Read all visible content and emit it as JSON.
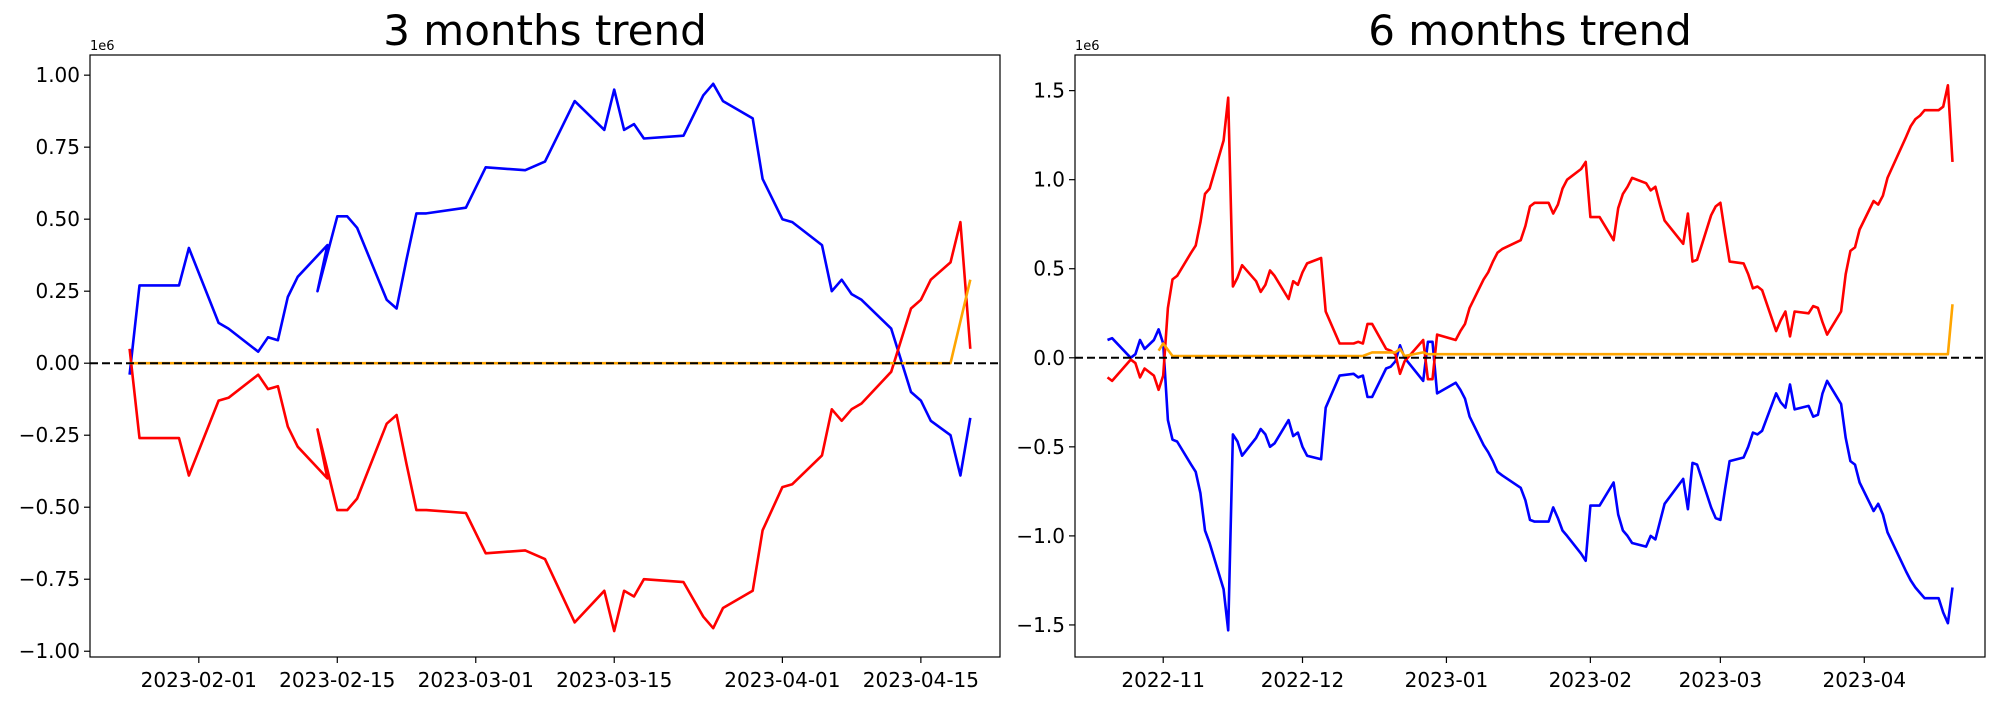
{
  "chart_data": [
    {
      "type": "line",
      "title": "3 months trend",
      "ylim": [
        -1.02,
        1.07
      ],
      "y_offset_label": "1e6",
      "y_ticks": [
        -1.0,
        -0.75,
        -0.5,
        -0.25,
        0.0,
        0.25,
        0.5,
        0.75,
        1.0
      ],
      "y_tick_labels": [
        "−1.00",
        "−0.75",
        "−0.50",
        "−0.25",
        "0.00",
        "0.25",
        "0.50",
        "0.75",
        "1.00"
      ],
      "xlim": [
        "2023-01-21",
        "2023-04-23"
      ],
      "x_ticks": [
        "2023-02-01",
        "2023-02-15",
        "2023-03-01",
        "2023-03-15",
        "2023-04-01",
        "2023-04-15"
      ],
      "x_tick_labels": [
        "2023-02-01",
        "2023-02-15",
        "2023-03-01",
        "2023-03-15",
        "2023-04-01",
        "2023-04-15"
      ],
      "reference_line": 0,
      "series": [
        {
          "color": "#0000ff",
          "x": [
            "2023-01-25",
            "2023-01-26",
            "2023-01-30",
            "2023-01-31",
            "2023-02-03",
            "2023-02-04",
            "2023-02-07",
            "2023-02-08",
            "2023-02-09",
            "2023-02-10",
            "2023-02-11",
            "2023-02-14",
            "2023-02-13",
            "2023-02-15",
            "2023-02-16",
            "2023-02-17",
            "2023-02-20",
            "2023-02-21",
            "2023-02-22",
            "2023-02-23",
            "2023-02-24",
            "2023-02-28",
            "2023-03-02",
            "2023-03-06",
            "2023-03-08",
            "2023-03-11",
            "2023-03-14",
            "2023-03-15",
            "2023-03-16",
            "2023-03-17",
            "2023-03-18",
            "2023-03-22",
            "2023-03-24",
            "2023-03-25",
            "2023-03-26",
            "2023-03-29",
            "2023-03-30",
            "2023-04-01",
            "2023-04-02",
            "2023-04-05",
            "2023-04-06",
            "2023-04-07",
            "2023-04-08",
            "2023-04-09",
            "2023-04-12",
            "2023-04-14",
            "2023-04-15",
            "2023-04-16",
            "2023-04-18",
            "2023-04-19",
            "2023-04-20"
          ],
          "y": [
            -0.04,
            0.27,
            0.27,
            0.4,
            0.14,
            0.12,
            0.04,
            0.09,
            0.08,
            0.23,
            0.3,
            0.41,
            0.25,
            0.51,
            0.51,
            0.47,
            0.22,
            0.19,
            0.36,
            0.52,
            0.52,
            0.54,
            0.68,
            0.67,
            0.7,
            0.91,
            0.81,
            0.95,
            0.81,
            0.83,
            0.78,
            0.79,
            0.93,
            0.97,
            0.91,
            0.85,
            0.64,
            0.5,
            0.49,
            0.41,
            0.25,
            0.29,
            0.24,
            0.22,
            0.12,
            -0.1,
            -0.13,
            -0.2,
            -0.25,
            -0.39,
            -0.19
          ]
        },
        {
          "color": "#ff0000",
          "x": [
            "2023-01-25",
            "2023-01-26",
            "2023-01-30",
            "2023-01-31",
            "2023-02-03",
            "2023-02-04",
            "2023-02-07",
            "2023-02-08",
            "2023-02-09",
            "2023-02-10",
            "2023-02-11",
            "2023-02-14",
            "2023-02-13",
            "2023-02-15",
            "2023-02-16",
            "2023-02-17",
            "2023-02-20",
            "2023-02-21",
            "2023-02-22",
            "2023-02-23",
            "2023-02-24",
            "2023-02-28",
            "2023-03-02",
            "2023-03-06",
            "2023-03-08",
            "2023-03-11",
            "2023-03-14",
            "2023-03-15",
            "2023-03-16",
            "2023-03-17",
            "2023-03-18",
            "2023-03-22",
            "2023-03-24",
            "2023-03-25",
            "2023-03-26",
            "2023-03-29",
            "2023-03-30",
            "2023-04-01",
            "2023-04-02",
            "2023-04-05",
            "2023-04-06",
            "2023-04-07",
            "2023-04-08",
            "2023-04-09",
            "2023-04-12",
            "2023-04-14",
            "2023-04-15",
            "2023-04-16",
            "2023-04-18",
            "2023-04-19",
            "2023-04-20"
          ],
          "y": [
            0.05,
            -0.26,
            -0.26,
            -0.39,
            -0.13,
            -0.12,
            -0.04,
            -0.09,
            -0.08,
            -0.22,
            -0.29,
            -0.4,
            -0.23,
            -0.51,
            -0.51,
            -0.47,
            -0.21,
            -0.18,
            -0.35,
            -0.51,
            -0.51,
            -0.52,
            -0.66,
            -0.65,
            -0.68,
            -0.9,
            -0.79,
            -0.93,
            -0.79,
            -0.81,
            -0.75,
            -0.76,
            -0.88,
            -0.92,
            -0.85,
            -0.79,
            -0.58,
            -0.43,
            -0.42,
            -0.32,
            -0.16,
            -0.2,
            -0.16,
            -0.14,
            -0.03,
            0.19,
            0.22,
            0.29,
            0.35,
            0.49,
            0.05
          ]
        },
        {
          "color": "#ffa500",
          "x": [
            "2023-01-25",
            "2023-04-18",
            "2023-04-20"
          ],
          "y": [
            0.0,
            0.0,
            0.29
          ]
        }
      ]
    },
    {
      "type": "line",
      "title": "6 months trend",
      "ylim": [
        -1.68,
        1.7
      ],
      "y_offset_label": "1e6",
      "y_ticks": [
        -1.5,
        -1.0,
        -0.5,
        0.0,
        0.5,
        1.0,
        1.5
      ],
      "y_tick_labels": [
        "−1.5",
        "−1.0",
        "−0.5",
        "0.0",
        "0.5",
        "1.0",
        "1.5"
      ],
      "xlim": [
        "2022-10-13",
        "2023-04-27"
      ],
      "x_ticks": [
        "2022-11-01",
        "2022-12-01",
        "2023-01-01",
        "2023-02-01",
        "2023-03-01",
        "2023-04-01"
      ],
      "x_tick_labels": [
        "2022-11",
        "2022-12",
        "2023-01",
        "2023-02",
        "2023-03",
        "2023-04"
      ],
      "reference_line": 0,
      "series": [
        {
          "color": "#0000ff",
          "x": [
            "2022-10-20",
            "2022-10-21",
            "2022-10-25",
            "2022-10-26",
            "2022-10-27",
            "2022-10-28",
            "2022-10-30",
            "2022-10-31",
            "2022-11-01",
            "2022-11-02",
            "2022-11-03",
            "2022-11-04",
            "2022-11-07",
            "2022-11-08",
            "2022-11-09",
            "2022-11-10",
            "2022-11-11",
            "2022-11-14",
            "2022-11-15",
            "2022-11-16",
            "2022-11-17",
            "2022-11-18",
            "2022-11-21",
            "2022-11-22",
            "2022-11-23",
            "2022-11-24",
            "2022-11-25",
            "2022-11-28",
            "2022-11-29",
            "2022-11-30",
            "2022-12-01",
            "2022-12-02",
            "2022-12-05",
            "2022-12-06",
            "2022-12-09",
            "2022-12-12",
            "2022-12-13",
            "2022-12-14",
            "2022-12-15",
            "2022-12-16",
            "2022-12-19",
            "2022-12-20",
            "2022-12-21",
            "2022-12-22",
            "2022-12-23",
            "2022-12-27",
            "2022-12-28",
            "2022-12-29",
            "2022-12-30",
            "2023-01-03",
            "2023-01-04",
            "2023-01-05",
            "2023-01-06",
            "2023-01-09",
            "2023-01-10",
            "2023-01-11",
            "2023-01-12",
            "2023-01-13",
            "2023-01-17",
            "2023-01-18",
            "2023-01-19",
            "2023-01-20",
            "2023-01-23",
            "2023-01-24",
            "2023-01-25",
            "2023-01-26",
            "2023-01-27",
            "2023-01-30",
            "2023-01-31",
            "2023-02-01",
            "2023-02-02",
            "2023-02-03",
            "2023-02-06",
            "2023-02-07",
            "2023-02-08",
            "2023-02-09",
            "2023-02-10",
            "2023-02-13",
            "2023-02-14",
            "2023-02-15",
            "2023-02-16",
            "2023-02-17",
            "2023-02-21",
            "2023-02-22",
            "2023-02-23",
            "2023-02-24",
            "2023-02-27",
            "2023-02-28",
            "2023-03-01",
            "2023-03-02",
            "2023-03-03",
            "2023-03-06",
            "2023-03-07",
            "2023-03-08",
            "2023-03-09",
            "2023-03-10",
            "2023-03-13",
            "2023-03-14",
            "2023-03-15",
            "2023-03-16",
            "2023-03-17",
            "2023-03-20",
            "2023-03-21",
            "2023-03-22",
            "2023-03-23",
            "2023-03-24",
            "2023-03-27",
            "2023-03-28",
            "2023-03-29",
            "2023-03-30",
            "2023-03-31",
            "2023-04-03",
            "2023-04-04",
            "2023-04-05",
            "2023-04-06",
            "2023-04-10",
            "2023-04-11",
            "2023-04-12",
            "2023-04-13",
            "2023-04-14",
            "2023-04-17",
            "2023-04-18",
            "2023-04-19",
            "2023-04-20"
          ],
          "y": [
            0.1,
            0.11,
            0.0,
            0.02,
            0.1,
            0.05,
            0.1,
            0.16,
            0.08,
            -0.35,
            -0.46,
            -0.47,
            -0.6,
            -0.64,
            -0.76,
            -0.97,
            -1.04,
            -1.3,
            -1.53,
            -0.43,
            -0.47,
            -0.55,
            -0.45,
            -0.4,
            -0.43,
            -0.5,
            -0.48,
            -0.35,
            -0.44,
            -0.42,
            -0.5,
            -0.55,
            -0.57,
            -0.28,
            -0.1,
            -0.09,
            -0.11,
            -0.1,
            -0.22,
            -0.22,
            -0.06,
            -0.05,
            -0.02,
            0.07,
            0.0,
            -0.13,
            0.09,
            0.09,
            -0.2,
            -0.14,
            -0.18,
            -0.23,
            -0.33,
            -0.49,
            -0.53,
            -0.58,
            -0.64,
            -0.66,
            -0.73,
            -0.8,
            -0.91,
            -0.92,
            -0.92,
            -0.84,
            -0.9,
            -0.97,
            -1.0,
            -1.1,
            -1.14,
            -0.83,
            -0.83,
            -0.83,
            -0.7,
            -0.88,
            -0.97,
            -1.0,
            -1.04,
            -1.06,
            -1.0,
            -1.02,
            -0.92,
            -0.82,
            -0.68,
            -0.85,
            -0.59,
            -0.6,
            -0.84,
            -0.9,
            -0.91,
            -0.74,
            -0.58,
            -0.56,
            -0.5,
            -0.42,
            -0.43,
            -0.41,
            -0.2,
            -0.25,
            -0.28,
            -0.15,
            -0.29,
            -0.27,
            -0.33,
            -0.32,
            -0.2,
            -0.13,
            -0.26,
            -0.45,
            -0.58,
            -0.6,
            -0.7,
            -0.86,
            -0.82,
            -0.88,
            -0.98,
            -1.2,
            -1.25,
            -1.29,
            -1.32,
            -1.35,
            -1.35,
            -1.43,
            -1.49,
            -1.29
          ]
        },
        {
          "color": "#ff0000",
          "x": [
            "2022-10-20",
            "2022-10-21",
            "2022-10-25",
            "2022-10-26",
            "2022-10-27",
            "2022-10-28",
            "2022-10-30",
            "2022-10-31",
            "2022-11-01",
            "2022-11-02",
            "2022-11-03",
            "2022-11-04",
            "2022-11-07",
            "2022-11-08",
            "2022-11-09",
            "2022-11-10",
            "2022-11-11",
            "2022-11-14",
            "2022-11-15",
            "2022-11-16",
            "2022-11-17",
            "2022-11-18",
            "2022-11-21",
            "2022-11-22",
            "2022-11-23",
            "2022-11-24",
            "2022-11-25",
            "2022-11-28",
            "2022-11-29",
            "2022-11-30",
            "2022-12-01",
            "2022-12-02",
            "2022-12-05",
            "2022-12-06",
            "2022-12-09",
            "2022-12-12",
            "2022-12-13",
            "2022-12-14",
            "2022-12-15",
            "2022-12-16",
            "2022-12-19",
            "2022-12-20",
            "2022-12-21",
            "2022-12-22",
            "2022-12-23",
            "2022-12-27",
            "2022-12-28",
            "2022-12-29",
            "2022-12-30",
            "2023-01-03",
            "2023-01-04",
            "2023-01-05",
            "2023-01-06",
            "2023-01-09",
            "2023-01-10",
            "2023-01-11",
            "2023-01-12",
            "2023-01-13",
            "2023-01-17",
            "2023-01-18",
            "2023-01-19",
            "2023-01-20",
            "2023-01-23",
            "2023-01-24",
            "2023-01-25",
            "2023-01-26",
            "2023-01-27",
            "2023-01-30",
            "2023-01-31",
            "2023-02-01",
            "2023-02-02",
            "2023-02-03",
            "2023-02-06",
            "2023-02-07",
            "2023-02-08",
            "2023-02-09",
            "2023-02-10",
            "2023-02-13",
            "2023-02-14",
            "2023-02-15",
            "2023-02-16",
            "2023-02-17",
            "2023-02-21",
            "2023-02-22",
            "2023-02-23",
            "2023-02-24",
            "2023-02-27",
            "2023-02-28",
            "2023-03-01",
            "2023-03-02",
            "2023-03-03",
            "2023-03-06",
            "2023-03-07",
            "2023-03-08",
            "2023-03-09",
            "2023-03-10",
            "2023-03-13",
            "2023-03-14",
            "2023-03-15",
            "2023-03-16",
            "2023-03-17",
            "2023-03-20",
            "2023-03-21",
            "2023-03-22",
            "2023-03-23",
            "2023-03-24",
            "2023-03-27",
            "2023-03-28",
            "2023-03-29",
            "2023-03-30",
            "2023-03-31",
            "2023-04-03",
            "2023-04-04",
            "2023-04-05",
            "2023-04-06",
            "2023-04-10",
            "2023-04-11",
            "2023-04-12",
            "2023-04-13",
            "2023-04-14",
            "2023-04-17",
            "2023-04-18",
            "2023-04-19",
            "2023-04-20"
          ],
          "y": [
            -0.11,
            -0.13,
            -0.01,
            -0.03,
            -0.11,
            -0.06,
            -0.1,
            -0.18,
            -0.1,
            0.28,
            0.44,
            0.46,
            0.59,
            0.63,
            0.76,
            0.92,
            0.95,
            1.22,
            1.46,
            0.4,
            0.45,
            0.52,
            0.43,
            0.37,
            0.41,
            0.49,
            0.46,
            0.33,
            0.43,
            0.41,
            0.48,
            0.53,
            0.56,
            0.26,
            0.08,
            0.08,
            0.09,
            0.08,
            0.19,
            0.19,
            0.05,
            0.04,
            0.02,
            -0.09,
            -0.02,
            0.1,
            -0.12,
            -0.12,
            0.13,
            0.1,
            0.15,
            0.19,
            0.28,
            0.44,
            0.48,
            0.54,
            0.59,
            0.61,
            0.66,
            0.74,
            0.85,
            0.87,
            0.87,
            0.81,
            0.86,
            0.95,
            1.0,
            1.06,
            1.1,
            0.79,
            0.79,
            0.79,
            0.66,
            0.84,
            0.92,
            0.96,
            1.01,
            0.98,
            0.94,
            0.96,
            0.86,
            0.77,
            0.64,
            0.81,
            0.54,
            0.55,
            0.8,
            0.85,
            0.87,
            0.7,
            0.54,
            0.53,
            0.47,
            0.39,
            0.4,
            0.38,
            0.15,
            0.21,
            0.26,
            0.12,
            0.26,
            0.25,
            0.29,
            0.28,
            0.2,
            0.13,
            0.26,
            0.47,
            0.6,
            0.62,
            0.72,
            0.88,
            0.86,
            0.91,
            1.01,
            1.24,
            1.3,
            1.34,
            1.36,
            1.39,
            1.39,
            1.41,
            1.53,
            1.1
          ]
        },
        {
          "color": "#ffa500",
          "x": [
            "2022-10-31",
            "2022-11-01",
            "2022-11-03",
            "2022-12-14",
            "2022-12-16",
            "2022-12-21",
            "2022-12-22",
            "2022-12-23",
            "2022-12-27",
            "2022-12-28",
            "2023-04-19",
            "2023-04-20"
          ],
          "y": [
            0.04,
            0.08,
            0.01,
            0.01,
            0.03,
            0.03,
            0.05,
            0.01,
            0.03,
            0.02,
            0.02,
            0.3
          ]
        }
      ]
    }
  ]
}
